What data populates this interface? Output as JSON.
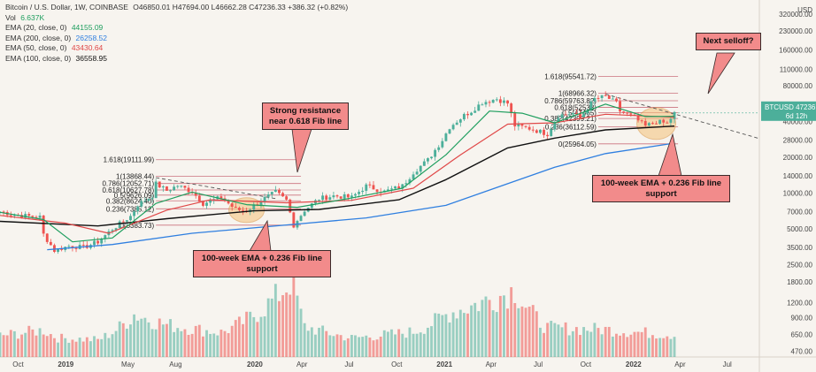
{
  "header": {
    "symbol_line": "Bitcoin / U.S. Dollar, 1W, COINBASE",
    "ohlc": "O46850.01 H47694.00 L46662.28 C47236.33 +386.32 (+0.82%)",
    "vol_label": "Vol",
    "vol_value": "6.637K",
    "ema": [
      {
        "label": "EMA (20, close, 0)",
        "value": "44155.09",
        "color": "#1e9e5e"
      },
      {
        "label": "EMA (200, close, 0)",
        "value": "26258.52",
        "color": "#2f7fe0"
      },
      {
        "label": "EMA (50, close, 0)",
        "value": "43430.64",
        "color": "#e04848"
      },
      {
        "label": "EMA (100, close, 0)",
        "value": "36558.95",
        "color": "#111111"
      }
    ]
  },
  "price_badge": {
    "symbol": "BTCUSD",
    "price": "47236.33",
    "countdown": "6d 12h"
  },
  "colors": {
    "up": "#4caf9a",
    "down": "#ef5350",
    "ema20": "#1e9e5e",
    "ema50": "#e04848",
    "ema100": "#111111",
    "ema200": "#2f7fe0",
    "callout": "#f28b8b",
    "fib": "#c45b6a",
    "highlight": "#f5c27a"
  },
  "callouts": {
    "resistance": "Strong resistance near 0.618 Fib line",
    "support_left": "100-week EMA + 0.236 Fib line support",
    "support_right": "100-week EMA + 0.236 Fib line support",
    "next_selloff": "Next selloff?"
  },
  "chart_data": {
    "type": "candlestick",
    "y_scale": "log",
    "x_range": [
      "2018-08-27",
      "2022-09-01"
    ],
    "y_range": [
      420,
      420000
    ],
    "y_ticks": [
      470,
      650,
      900,
      1200,
      1800,
      2500,
      3500,
      5000,
      7000,
      10000,
      14000,
      20000,
      28000,
      40000,
      56000,
      80000,
      110000,
      160000,
      230000,
      320000
    ],
    "y_tick_labels": [
      "470.00",
      "650.00",
      "900.00",
      "1200.00",
      "1800.00",
      "2500.00",
      "3500.00",
      "5000.00",
      "7000.00",
      "10000.00",
      "14000.00",
      "20000.00",
      "28000.00",
      "40000.00",
      "56000.00",
      "80000.00",
      "110000.00",
      "160000.00",
      "230000.00",
      "320000.00"
    ],
    "y_axis_unit": "USD",
    "x_ticks": [
      {
        "date": "2018-10-01",
        "label": "Oct"
      },
      {
        "date": "2019-01-01",
        "label": "2019"
      },
      {
        "date": "2019-05-01",
        "label": "May"
      },
      {
        "date": "2019-08-01",
        "label": "Aug"
      },
      {
        "date": "2020-01-01",
        "label": "2020"
      },
      {
        "date": "2020-04-01",
        "label": "Apr"
      },
      {
        "date": "2020-07-01",
        "label": "Jul"
      },
      {
        "date": "2020-10-01",
        "label": "Oct"
      },
      {
        "date": "2021-01-01",
        "label": "2021"
      },
      {
        "date": "2021-04-01",
        "label": "Apr"
      },
      {
        "date": "2021-07-01",
        "label": "Jul"
      },
      {
        "date": "2021-10-01",
        "label": "Oct"
      },
      {
        "date": "2022-01-01",
        "label": "2022"
      },
      {
        "date": "2022-04-01",
        "label": "Apr"
      },
      {
        "date": "2022-07-01",
        "label": "Jul"
      }
    ],
    "price_path": [
      [
        "2018-08-27",
        7000
      ],
      [
        "2018-09-24",
        6600
      ],
      [
        "2018-10-22",
        6400
      ],
      [
        "2018-11-12",
        6300
      ],
      [
        "2018-11-19",
        4500
      ],
      [
        "2018-12-10",
        3300
      ],
      [
        "2019-01-07",
        3600
      ],
      [
        "2019-02-04",
        3500
      ],
      [
        "2019-03-04",
        3900
      ],
      [
        "2019-04-01",
        5000
      ],
      [
        "2019-05-06",
        6400
      ],
      [
        "2019-05-20",
        8000
      ],
      [
        "2019-06-17",
        9500
      ],
      [
        "2019-06-24",
        12000
      ],
      [
        "2019-07-15",
        10500
      ],
      [
        "2019-08-05",
        11600
      ],
      [
        "2019-09-02",
        10300
      ],
      [
        "2019-09-23",
        8200
      ],
      [
        "2019-10-28",
        9200
      ],
      [
        "2019-11-25",
        7300
      ],
      [
        "2019-12-16",
        7100
      ],
      [
        "2020-01-13",
        8700
      ],
      [
        "2020-02-10",
        10200
      ],
      [
        "2020-03-02",
        8700
      ],
      [
        "2020-03-16",
        5400
      ],
      [
        "2020-04-06",
        7200
      ],
      [
        "2020-05-04",
        9000
      ],
      [
        "2020-06-01",
        9500
      ],
      [
        "2020-07-06",
        9200
      ],
      [
        "2020-08-03",
        11500
      ],
      [
        "2020-09-07",
        10300
      ],
      [
        "2020-10-12",
        11500
      ],
      [
        "2020-11-02",
        15000
      ],
      [
        "2020-11-30",
        19000
      ],
      [
        "2020-12-28",
        28000
      ],
      [
        "2021-01-11",
        36000
      ],
      [
        "2021-02-08",
        45000
      ],
      [
        "2021-02-22",
        49000
      ],
      [
        "2021-03-15",
        58000
      ],
      [
        "2021-04-12",
        62000
      ],
      [
        "2021-05-03",
        57000
      ],
      [
        "2021-05-17",
        37000
      ],
      [
        "2021-06-14",
        35000
      ],
      [
        "2021-07-19",
        31500
      ],
      [
        "2021-08-09",
        45000
      ],
      [
        "2021-09-06",
        47000
      ],
      [
        "2021-09-20",
        43000
      ],
      [
        "2021-10-18",
        62000
      ],
      [
        "2021-11-08",
        65000
      ],
      [
        "2021-11-29",
        57000
      ],
      [
        "2021-12-06",
        49000
      ],
      [
        "2022-01-03",
        43000
      ],
      [
        "2022-01-24",
        36500
      ],
      [
        "2022-02-14",
        40000
      ],
      [
        "2022-03-07",
        38500
      ],
      [
        "2022-03-21",
        46800
      ]
    ],
    "ema20": [
      [
        "2018-08-27",
        6900
      ],
      [
        "2018-11-19",
        6000
      ],
      [
        "2019-01-14",
        3900
      ],
      [
        "2019-04-01",
        4200
      ],
      [
        "2019-06-24",
        8200
      ],
      [
        "2019-09-02",
        10200
      ],
      [
        "2019-12-16",
        8000
      ],
      [
        "2020-03-23",
        7600
      ],
      [
        "2020-06-29",
        9000
      ],
      [
        "2020-10-12",
        11000
      ],
      [
        "2021-01-04",
        21000
      ],
      [
        "2021-03-29",
        49000
      ],
      [
        "2021-05-31",
        47000
      ],
      [
        "2021-08-02",
        39000
      ],
      [
        "2021-11-08",
        56000
      ],
      [
        "2022-01-24",
        44000
      ],
      [
        "2022-03-21",
        44200
      ]
    ],
    "ema50": [
      [
        "2018-08-27",
        6500
      ],
      [
        "2018-12-31",
        5600
      ],
      [
        "2019-03-25",
        4600
      ],
      [
        "2019-07-15",
        7200
      ],
      [
        "2019-10-07",
        8800
      ],
      [
        "2020-03-02",
        8300
      ],
      [
        "2020-07-06",
        8700
      ],
      [
        "2020-11-02",
        11000
      ],
      [
        "2021-02-01",
        21000
      ],
      [
        "2021-05-03",
        38000
      ],
      [
        "2021-08-02",
        39000
      ],
      [
        "2021-11-08",
        46000
      ],
      [
        "2022-03-21",
        43400
      ]
    ],
    "ema100": [
      [
        "2018-08-27",
        5800
      ],
      [
        "2019-03-04",
        5300
      ],
      [
        "2019-07-15",
        6100
      ],
      [
        "2019-12-30",
        7100
      ],
      [
        "2020-05-04",
        7300
      ],
      [
        "2020-10-05",
        8800
      ],
      [
        "2021-01-04",
        13000
      ],
      [
        "2021-05-03",
        24000
      ],
      [
        "2021-08-02",
        29000
      ],
      [
        "2021-11-08",
        34000
      ],
      [
        "2022-03-21",
        36600
      ]
    ],
    "ema200": [
      [
        "2018-11-26",
        3350
      ],
      [
        "2019-04-01",
        3700
      ],
      [
        "2019-09-02",
        4600
      ],
      [
        "2020-03-02",
        5400
      ],
      [
        "2020-08-03",
        6200
      ],
      [
        "2021-01-04",
        7900
      ],
      [
        "2021-05-03",
        12000
      ],
      [
        "2021-08-02",
        16500
      ],
      [
        "2021-11-08",
        21500
      ],
      [
        "2022-03-21",
        26300
      ]
    ],
    "volume_path": [
      [
        "2018-08-27",
        700
      ],
      [
        "2018-11-19",
        880
      ],
      [
        "2018-12-17",
        620
      ],
      [
        "2019-03-04",
        560
      ],
      [
        "2019-05-13",
        1400
      ],
      [
        "2019-07-15",
        1050
      ],
      [
        "2019-10-28",
        800
      ],
      [
        "2020-03-16",
        2600
      ],
      [
        "2020-04-06",
        1000
      ],
      [
        "2020-07-06",
        620
      ],
      [
        "2020-11-02",
        820
      ],
      [
        "2021-01-11",
        1450
      ],
      [
        "2021-05-17",
        2200
      ],
      [
        "2021-07-19",
        950
      ],
      [
        "2021-11-08",
        900
      ],
      [
        "2022-03-21",
        720
      ]
    ],
    "fib_sets": [
      {
        "start": "2019-06-24",
        "end": "2020-03-30",
        "levels": [
          {
            "label": "1.618(19111.99)",
            "price": 19111.99
          },
          {
            "label": "1(13868.44)",
            "price": 13868.44
          },
          {
            "label": "0.786(12052.71)",
            "price": 12052.71
          },
          {
            "label": "0.618(10627.78)",
            "price": 10627.78
          },
          {
            "label": "0.5(9626.09)",
            "price": 9626.09
          },
          {
            "label": "0.382(8624.40)",
            "price": 8624.4
          },
          {
            "label": "0.236(7385.12)",
            "price": 7385.12
          },
          {
            "label": "0(5383.73)",
            "price": 5383.73
          }
        ]
      },
      {
        "start": "2021-10-25",
        "end": "2022-03-28",
        "levels": [
          {
            "label": "1.618(95541.72)",
            "price": 95541.72
          },
          {
            "label": "1(68966.32)",
            "price": 68966.32
          },
          {
            "label": "0.786(59763.82)",
            "price": 59763.82
          },
          {
            "label": "0.618(52533)",
            "price": 52533
          },
          {
            "label": "0.5(47465)",
            "price": 47465
          },
          {
            "label": "0.382(42399.21)",
            "price": 42399.21
          },
          {
            "label": "0.236(36112.59)",
            "price": 36112.59
          },
          {
            "label": "0(25964.05)",
            "price": 25964.05
          }
        ]
      }
    ],
    "trendlines": [
      {
        "from": [
          "2019-06-24",
          13500
        ],
        "to": [
          "2020-02-10",
          9000
        ]
      },
      {
        "from": [
          "2021-11-08",
          68000
        ],
        "to": [
          "2022-08-29",
          29000
        ]
      }
    ]
  }
}
